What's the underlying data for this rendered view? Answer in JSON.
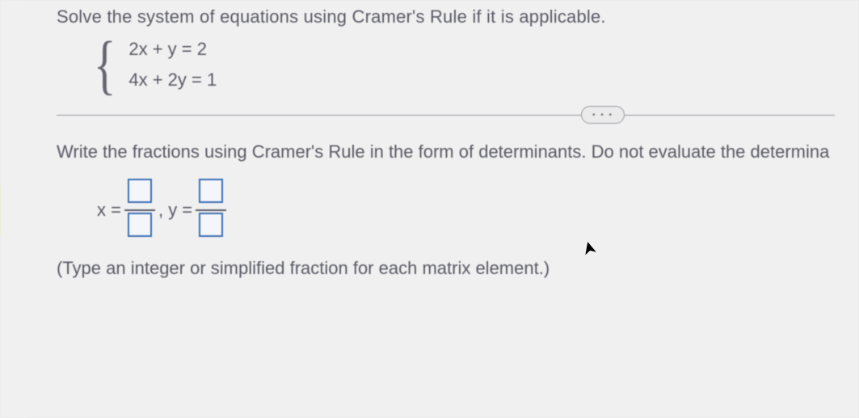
{
  "question": {
    "prompt": "Solve the system of equations using Cramer's Rule if it is applicable.",
    "eq1": "2x + y  = 2",
    "eq2": "4x + 2y = 1"
  },
  "divider": {
    "dots": "• • •"
  },
  "sub": {
    "prompt": "Write the fractions using Cramer's Rule in the form of determinants. Do not evaluate the determina"
  },
  "frac": {
    "x_label": "x =",
    "sep": ", y =",
    "slot_color": "#3b6fb5",
    "bar_color": "#5a5a66"
  },
  "hint": {
    "text": "(Type an integer or simplified fraction for each matrix element.)"
  },
  "colors": {
    "page_bg": "#f0f0f0",
    "text": "#5a5a66",
    "rule": "#9a9aa2",
    "tab": "#e8d77a"
  }
}
